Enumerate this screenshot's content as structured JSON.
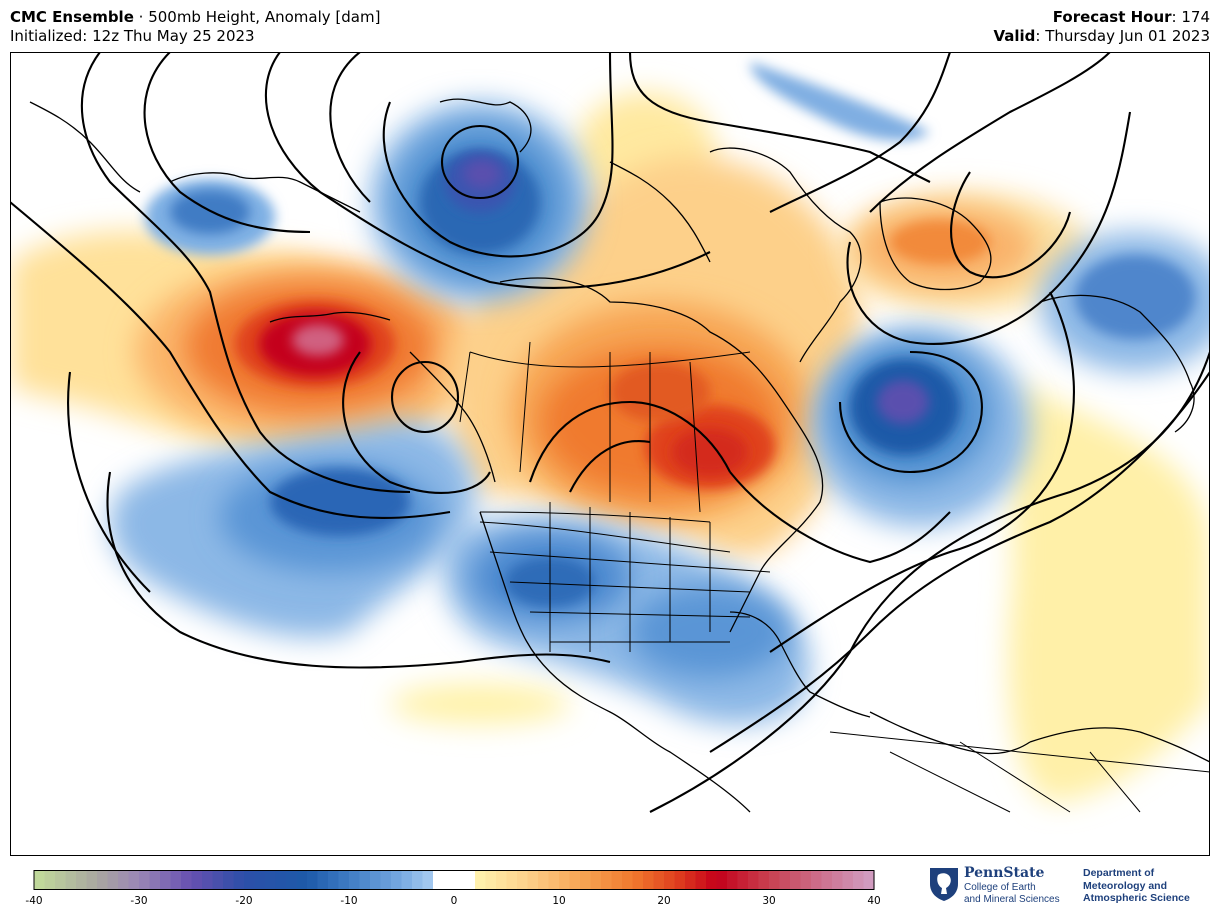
{
  "header": {
    "model": "CMC Ensemble",
    "separator": " · ",
    "product": "500mb Height, Anomaly [dam]",
    "initialized": "Initialized: 12z Thu May 25 2023",
    "forecast_label": "Forecast Hour",
    "forecast_value": ": 174",
    "valid_label": "Valid",
    "valid_value": ": Thursday Jun 01 2023"
  },
  "colorbar": {
    "ticks": [
      "-40",
      "-30",
      "-20",
      "-10",
      "0",
      "10",
      "20",
      "30",
      "40"
    ],
    "range": [
      -40,
      40
    ]
  },
  "logo": {
    "name": "PennState",
    "sub_line1": "College of Earth",
    "sub_line2": "and Mineral Sciences",
    "dept_line1": "Department of",
    "dept_line2": "Meteorology and",
    "dept_line3": "Atmospheric Science",
    "brand_color": "#1e407c"
  },
  "map": {
    "region": "North America and surrounding oceans",
    "anomaly_features": [
      {
        "kind": "ridge",
        "area": "Gulf of Alaska / Aleutians",
        "peak_dam": 36
      },
      {
        "kind": "ridge",
        "area": "central Canada",
        "peak_dam": 26
      },
      {
        "kind": "ridge",
        "area": "Hudson Bay",
        "peak_dam": 22
      },
      {
        "kind": "ridge",
        "area": "Greenland",
        "peak_dam": 16
      },
      {
        "kind": "trough",
        "area": "Arctic north of Alaska",
        "peak_dam": -24
      },
      {
        "kind": "trough",
        "area": "Labrador Sea / Newfoundland",
        "peak_dam": -24
      },
      {
        "kind": "trough",
        "area": "eastern Pacific",
        "peak_dam": -16
      },
      {
        "kind": "trough",
        "area": "southern United States",
        "peak_dam": -14
      },
      {
        "kind": "trough",
        "area": "Bering Sea",
        "peak_dam": -12
      },
      {
        "kind": "trough",
        "area": "western Europe",
        "peak_dam": -12
      },
      {
        "kind": "trough",
        "area": "Arctic Ocean",
        "peak_dam": -6
      },
      {
        "kind": "weak ridge",
        "area": "central Atlantic",
        "peak_dam": 4
      },
      {
        "kind": "weak ridge",
        "area": "subtropical Pacific",
        "peak_dam": 4
      }
    ],
    "contours": "500mb height (black lines)",
    "colors": {
      "coast": "#000000",
      "red_core": "#c4001a",
      "blue_core": "#1d5aa8"
    }
  }
}
